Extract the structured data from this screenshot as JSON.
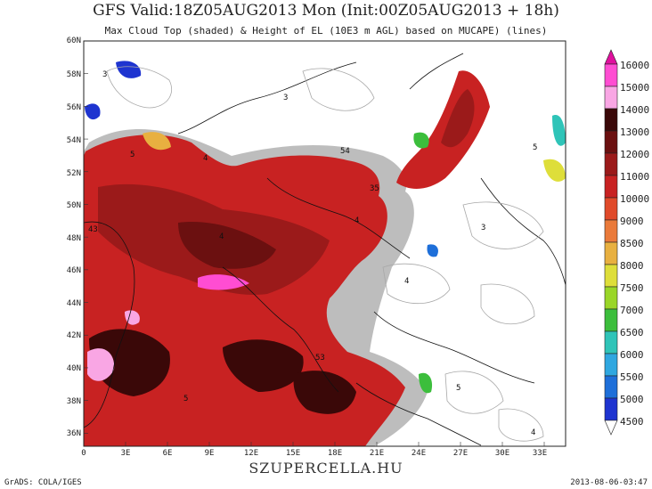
{
  "header": {
    "title": "GFS Valid:18Z05AUG2013 Mon (Init:00Z05AUG2013 + 18h)",
    "subtitle": "Max Cloud Top (shaded) & Height of EL (10E3 m AGL) based on MUCAPE) (lines)"
  },
  "map": {
    "lat_labels": [
      "60N",
      "58N",
      "56N",
      "54N",
      "52N",
      "50N",
      "48N",
      "46N",
      "44N",
      "42N",
      "40N",
      "38N",
      "36N"
    ],
    "lon_labels": [
      "0",
      "3E",
      "6E",
      "9E",
      "12E",
      "15E",
      "18E",
      "21E",
      "24E",
      "27E",
      "30E",
      "33E"
    ],
    "contour_labels": [
      "3",
      "4",
      "5",
      "43",
      "53",
      "54",
      "35"
    ]
  },
  "colorbar": {
    "levels": [
      "16000",
      "15000",
      "14000",
      "13000",
      "12000",
      "11000",
      "10000",
      "9000",
      "8500",
      "8000",
      "7500",
      "7000",
      "6500",
      "6000",
      "5500",
      "5000",
      "4500"
    ],
    "colors": [
      "#e0109e",
      "#ff4dd2",
      "#f9a6e4",
      "#3a0808",
      "#6b1010",
      "#9b1a1a",
      "#c82222",
      "#e04a2a",
      "#ea7a3a",
      "#e8b040",
      "#dede3a",
      "#9ad628",
      "#3cbe3c",
      "#2fc4b8",
      "#2fa7e0",
      "#1e6fd9",
      "#1e34d0"
    ]
  },
  "footer": {
    "left": "GrADS: COLA/IGES",
    "brand": "SZUPERCELLA.HU",
    "right": "2013-08-06-03:47"
  }
}
